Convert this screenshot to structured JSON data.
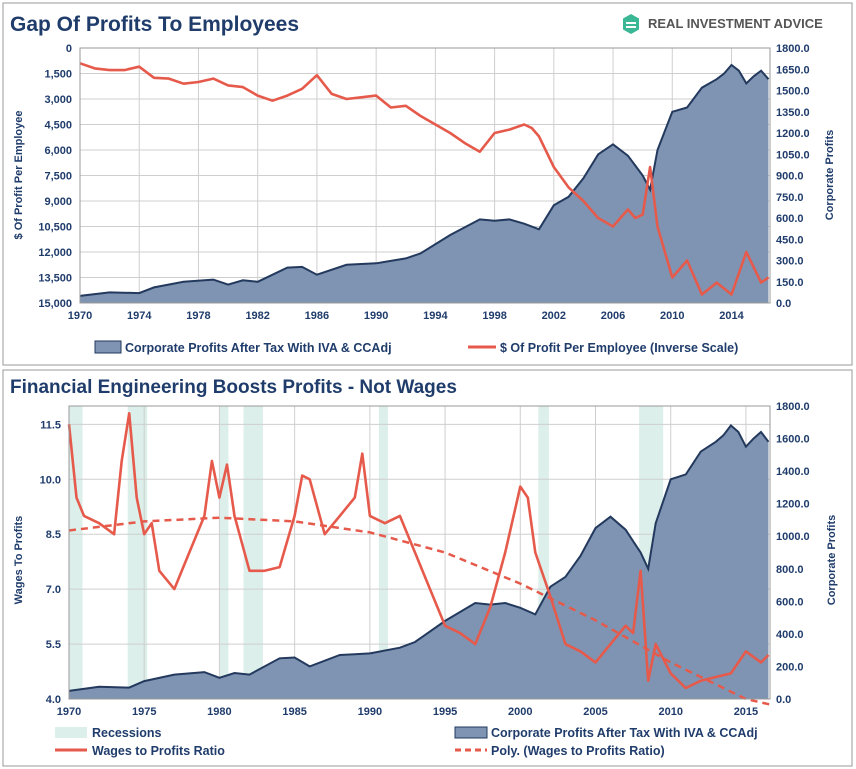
{
  "brand": {
    "name": "REAL INVESTMENT ADVICE",
    "logo_color": "#3ab795"
  },
  "colors": {
    "title": "#1f3c6b",
    "area_fill": "#7e94b2",
    "area_line": "#23395d",
    "red": "#e65a4b",
    "recession": "#dcefea",
    "grid": "#cfcfcf"
  },
  "chart_data": [
    {
      "type": "area+line",
      "title": "Gap Of Profits To Employees",
      "ylabel": "$ Of Profit Per Employee",
      "y2label": "Corporate Profits",
      "x_range": [
        1970,
        2016.6
      ],
      "y_left_range": [
        15000,
        0
      ],
      "y_left_inverted": true,
      "y_left_ticks": [
        "0",
        "1,500",
        "3,000",
        "4,500",
        "6,000",
        "7,500",
        "9,000",
        "10,500",
        "12,000",
        "13,500",
        "15,000"
      ],
      "y_right_range": [
        0,
        1800
      ],
      "y_right_ticks": [
        "0.0",
        "150.0",
        "300.0",
        "450.0",
        "600.0",
        "750.0",
        "900.0",
        "1050.0",
        "1200.0",
        "1350.0",
        "1500.0",
        "1650.0",
        "1800.0"
      ],
      "x_ticks": [
        "1970",
        "1974",
        "1978",
        "1982",
        "1986",
        "1990",
        "1994",
        "1998",
        "2002",
        "2006",
        "2010",
        "2014"
      ],
      "legend": [
        "Corporate Profits After Tax With IVA & CCAdj",
        "$ Of Profit Per Employee (Inverse Scale)"
      ],
      "series": [
        {
          "name": "Corporate Profits After Tax With IVA & CCAdj",
          "axis": "right",
          "x": [
            1970,
            1972,
            1974,
            1975,
            1977,
            1979,
            1980,
            1981,
            1982,
            1984,
            1985,
            1986,
            1988,
            1989,
            1990,
            1992,
            1993,
            1995,
            1997,
            1998,
            1999,
            2000,
            2001,
            2002,
            2003,
            2004,
            2005,
            2006,
            2007,
            2008,
            2008.5,
            2009,
            2010,
            2011,
            2012,
            2013,
            2013.5,
            2014,
            2014.5,
            2015,
            2015.5,
            2016,
            2016.5
          ],
          "values": [
            50,
            75,
            70,
            110,
            150,
            165,
            130,
            160,
            150,
            250,
            255,
            200,
            270,
            275,
            280,
            315,
            350,
            480,
            590,
            580,
            590,
            560,
            520,
            690,
            750,
            880,
            1050,
            1120,
            1040,
            900,
            800,
            1080,
            1350,
            1380,
            1520,
            1580,
            1620,
            1680,
            1640,
            1550,
            1600,
            1640,
            1580
          ]
        },
        {
          "name": "$ Of Profit Per Employee (Inverse Scale)",
          "axis": "left",
          "x": [
            1970,
            1971,
            1972,
            1973,
            1974,
            1975,
            1976,
            1977,
            1978,
            1979,
            1980,
            1981,
            1982,
            1983,
            1984,
            1985,
            1986,
            1987,
            1988,
            1989,
            1990,
            1991,
            1992,
            1993,
            1994,
            1995,
            1996,
            1997,
            1998,
            1999,
            2000,
            2000.5,
            2001,
            2002,
            2003,
            2004,
            2005,
            2006,
            2007,
            2007.5,
            2008,
            2008.5,
            2009,
            2010,
            2011,
            2012,
            2013,
            2014,
            2015,
            2016,
            2016.5
          ],
          "values": [
            900,
            1200,
            1300,
            1300,
            1100,
            1750,
            1800,
            2100,
            2000,
            1800,
            2200,
            2300,
            2800,
            3100,
            2800,
            2400,
            1600,
            2700,
            3000,
            2900,
            2800,
            3500,
            3400,
            4000,
            4500,
            5000,
            5600,
            6100,
            5000,
            4800,
            4500,
            4700,
            5200,
            7000,
            8200,
            9000,
            10000,
            10500,
            9500,
            10000,
            9800,
            7000,
            10500,
            13500,
            12500,
            14500,
            13800,
            14500,
            12000,
            13800,
            13500
          ]
        }
      ]
    },
    {
      "type": "area+line",
      "title": "Financial Engineering Boosts Profits - Not Wages",
      "ylabel": "Wages To Profits",
      "y2label": "Corporate Profits",
      "x_range": [
        1970,
        2016.6
      ],
      "y_left_range": [
        4.0,
        12.0
      ],
      "y_left_ticks": [
        "4.0",
        "5.5",
        "7.0",
        "8.5",
        "10.0",
        "11.5"
      ],
      "y_right_range": [
        0,
        1800
      ],
      "y_right_ticks": [
        "0.0",
        "200.0",
        "400.0",
        "600.0",
        "800.0",
        "1000.0",
        "1200.0",
        "1400.0",
        "1600.0",
        "1800.0"
      ],
      "x_ticks": [
        "1970",
        "1975",
        "1980",
        "1985",
        "1990",
        "1995",
        "2000",
        "2005",
        "2010",
        "2015"
      ],
      "recessions": [
        [
          1970,
          1970.9
        ],
        [
          1973.9,
          1975.2
        ],
        [
          1980,
          1980.6
        ],
        [
          1981.6,
          1982.9
        ],
        [
          1990.6,
          1991.2
        ],
        [
          2001.2,
          2001.9
        ],
        [
          2007.9,
          2009.5
        ]
      ],
      "legend": [
        "Recessions",
        "Corporate Profits After Tax With IVA & CCAdj",
        "Wages to Profits Ratio",
        "Poly. (Wages to Profits Ratio)"
      ],
      "series": [
        {
          "name": "Corporate Profits After Tax With IVA & CCAdj",
          "axis": "right",
          "x": [
            1970,
            1972,
            1974,
            1975,
            1977,
            1979,
            1980,
            1981,
            1982,
            1984,
            1985,
            1986,
            1988,
            1989,
            1990,
            1992,
            1993,
            1995,
            1997,
            1998,
            1999,
            2000,
            2001,
            2002,
            2003,
            2004,
            2005,
            2006,
            2007,
            2008,
            2008.5,
            2009,
            2010,
            2011,
            2012,
            2013,
            2013.5,
            2014,
            2014.5,
            2015,
            2015.5,
            2016,
            2016.5
          ],
          "values": [
            50,
            75,
            70,
            110,
            150,
            165,
            130,
            160,
            150,
            250,
            255,
            200,
            270,
            275,
            280,
            315,
            350,
            480,
            590,
            580,
            590,
            560,
            520,
            690,
            750,
            880,
            1050,
            1120,
            1040,
            900,
            800,
            1080,
            1350,
            1380,
            1520,
            1580,
            1620,
            1680,
            1640,
            1550,
            1600,
            1640,
            1580
          ]
        },
        {
          "name": "Wages to Profits Ratio",
          "axis": "left",
          "x": [
            1970,
            1970.5,
            1971,
            1972,
            1973,
            1973.5,
            1974,
            1974.5,
            1975,
            1975.5,
            1976,
            1977,
            1977.5,
            1978,
            1979,
            1979.5,
            1980,
            1980.5,
            1981,
            1982,
            1983,
            1984,
            1985,
            1985.5,
            1986,
            1987,
            1988,
            1989,
            1989.5,
            1990,
            1991,
            1992,
            1993,
            1994,
            1995,
            1996,
            1997,
            1998,
            1999,
            2000,
            2000.5,
            2001,
            2002,
            2003,
            2004,
            2005,
            2006,
            2007,
            2007.5,
            2008,
            2008.5,
            2009,
            2010,
            2011,
            2012,
            2013,
            2014,
            2015,
            2016,
            2016.5
          ],
          "values": [
            11.5,
            9.5,
            9.0,
            8.8,
            8.5,
            10.5,
            11.8,
            9.5,
            8.5,
            8.8,
            7.5,
            7.0,
            7.5,
            8.0,
            9.0,
            10.5,
            9.5,
            10.4,
            9.0,
            7.5,
            7.5,
            7.6,
            9.0,
            10.1,
            10.0,
            8.5,
            9.0,
            9.5,
            10.7,
            9.0,
            8.8,
            9.0,
            8.0,
            7.0,
            6.0,
            5.8,
            5.5,
            6.5,
            8.0,
            9.8,
            9.5,
            8.0,
            6.8,
            5.5,
            5.3,
            5.0,
            5.5,
            6.0,
            5.8,
            7.5,
            4.5,
            5.5,
            4.7,
            4.3,
            4.5,
            4.6,
            4.7,
            5.3,
            5.0,
            5.2
          ]
        },
        {
          "name": "Poly. (Wages to Profits Ratio)",
          "axis": "left",
          "style": "dashed",
          "x": [
            1970,
            1975,
            1980,
            1985,
            1990,
            1995,
            2000,
            2005,
            2010,
            2015,
            2016.6
          ],
          "values": [
            8.6,
            8.85,
            8.95,
            8.85,
            8.55,
            8.0,
            7.15,
            6.15,
            5.0,
            4.0,
            3.85
          ]
        }
      ]
    }
  ]
}
